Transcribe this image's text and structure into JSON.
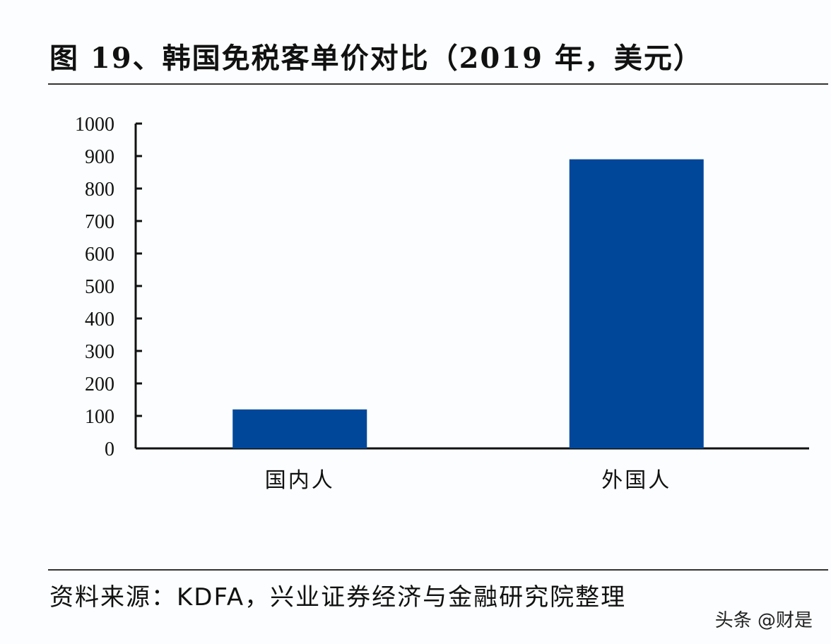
{
  "title": "图 19、韩国免税客单价对比（2019 年，美元）",
  "source": "资料来源：KDFA，兴业证券经济与金融研究院整理",
  "watermark": "头条 @财是",
  "chart_data": {
    "type": "bar",
    "title": "图 19、韩国免税客单价对比（2019 年，美元）",
    "categories": [
      "国内人",
      "外国人"
    ],
    "values": [
      120,
      890
    ],
    "ylim": [
      0,
      1000
    ],
    "yticks": [
      "0",
      "100",
      "200",
      "300",
      "400",
      "500",
      "600",
      "700",
      "800",
      "900",
      "1000"
    ],
    "grid": false,
    "bar_color": "#00479a"
  }
}
